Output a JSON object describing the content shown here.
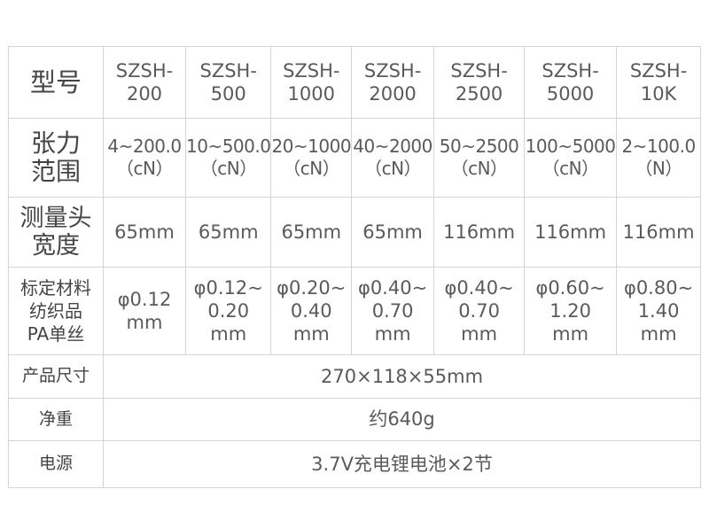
{
  "table": {
    "labels": {
      "model": "型号",
      "range": [
        "张力",
        "范围"
      ],
      "head_width": [
        "测量头",
        "宽度"
      ],
      "calibration": [
        "标定材料",
        "纺织品",
        "PA单丝"
      ],
      "size": "产品尺寸",
      "weight": "净重",
      "power": "电源"
    },
    "columns": [
      {
        "model": [
          "SZSH-",
          "200"
        ],
        "range": [
          "4~200.0",
          "（cN）"
        ],
        "width": "65mm",
        "calibration": [
          "φ0.12",
          "mm"
        ]
      },
      {
        "model": [
          "SZSH-",
          "500"
        ],
        "range": [
          "10~500.0",
          "（cN）"
        ],
        "width": "65mm",
        "calibration": [
          "φ0.12~",
          "0.20",
          "mm"
        ]
      },
      {
        "model": [
          "SZSH-",
          "1000"
        ],
        "range": [
          "20~1000",
          "（cN）"
        ],
        "width": "65mm",
        "calibration": [
          "φ0.20~",
          "0.40",
          "mm"
        ]
      },
      {
        "model": [
          "SZSH-",
          "2000"
        ],
        "range": [
          "40~2000",
          "（cN）"
        ],
        "width": "65mm",
        "calibration": [
          "φ0.40~",
          "0.70",
          "mm"
        ]
      },
      {
        "model": [
          "SZSH-",
          "2500"
        ],
        "range": [
          "50~2500",
          "（cN）"
        ],
        "width": "116mm",
        "calibration": [
          "φ0.40~",
          "0.70",
          "mm"
        ]
      },
      {
        "model": [
          "SZSH-",
          "5000"
        ],
        "range": [
          "100~5000",
          "（cN）"
        ],
        "width": "116mm",
        "calibration": [
          "φ0.60~",
          "1.20",
          "mm"
        ]
      },
      {
        "model": [
          "SZSH-",
          "10K"
        ],
        "range": [
          "2~100.0",
          "（N）"
        ],
        "width": "116mm",
        "calibration": [
          "φ0.80~",
          "1.40",
          "mm"
        ]
      }
    ],
    "size": "270×118×55mm",
    "weight": "约640g",
    "power": "3.7V充电锂电池×2节"
  }
}
